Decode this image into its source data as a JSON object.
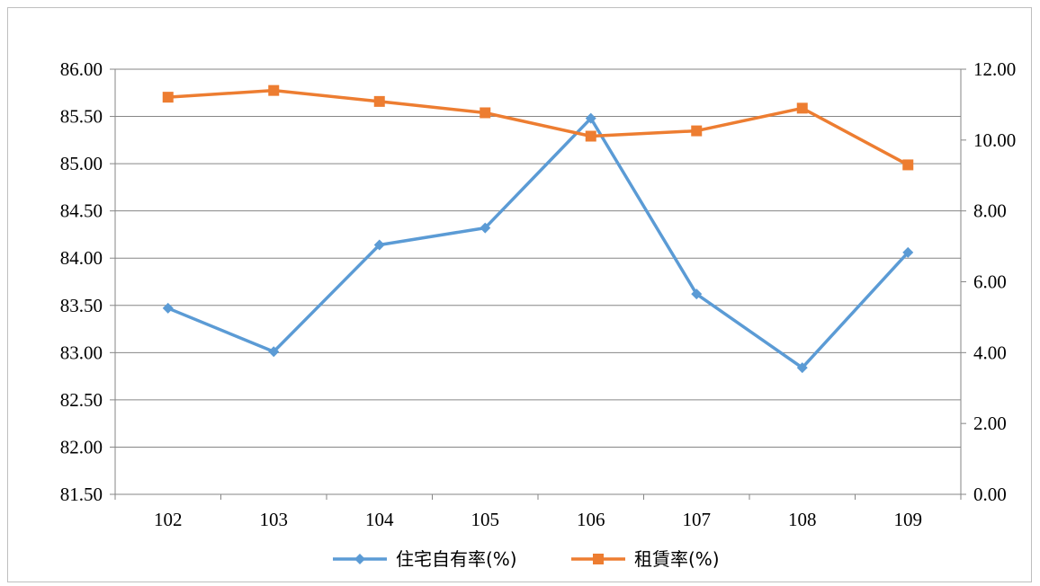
{
  "chart_data": {
    "type": "line",
    "title": "",
    "xlabel": "",
    "ylabel": "",
    "categories": [
      "102",
      "103",
      "104",
      "105",
      "106",
      "107",
      "108",
      "109"
    ],
    "y_left": {
      "range": [
        81.5,
        86.0
      ],
      "ticks": [
        "81.50",
        "82.00",
        "82.50",
        "83.00",
        "83.50",
        "84.00",
        "84.50",
        "85.00",
        "85.50",
        "86.00"
      ]
    },
    "y_right": {
      "range": [
        0,
        12
      ],
      "ticks": [
        "0.00",
        "2.00",
        "4.00",
        "6.00",
        "8.00",
        "10.00",
        "12.00"
      ]
    },
    "grid": true,
    "legend_position": "bottom",
    "series": [
      {
        "name": "住宅自有率(%)",
        "axis": "left",
        "color": "#5b9bd5",
        "marker": "diamond",
        "values": [
          83.47,
          83.01,
          84.14,
          84.32,
          85.48,
          83.62,
          82.84,
          84.06
        ]
      },
      {
        "name": "租賃率(%)",
        "axis": "right",
        "color": "#ed7d31",
        "marker": "square",
        "values": [
          11.21,
          11.4,
          11.09,
          10.77,
          10.11,
          10.26,
          10.9,
          9.3
        ]
      }
    ]
  }
}
